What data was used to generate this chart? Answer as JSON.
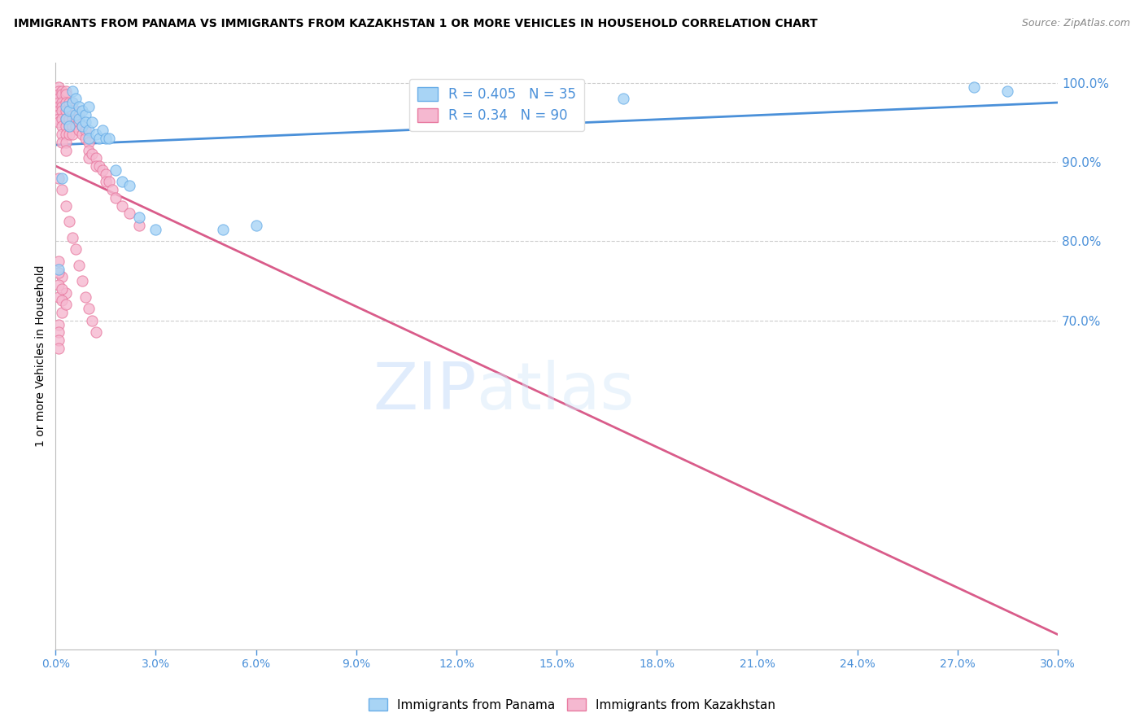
{
  "title": "IMMIGRANTS FROM PANAMA VS IMMIGRANTS FROM KAZAKHSTAN 1 OR MORE VEHICLES IN HOUSEHOLD CORRELATION CHART",
  "source": "Source: ZipAtlas.com",
  "ylabel": "1 or more Vehicles in Household",
  "ylabel_right_ticks": [
    1.0,
    0.9,
    0.8,
    0.7
  ],
  "ylabel_right_labels": [
    "100.0%",
    "90.0%",
    "80.0%",
    "70.0%"
  ],
  "xmin": 0.0,
  "xmax": 0.3,
  "ymin": 0.285,
  "ymax": 1.025,
  "panama_R": 0.405,
  "panama_N": 35,
  "kazakhstan_R": 0.34,
  "kazakhstan_N": 90,
  "panama_color": "#A8D4F5",
  "panama_edge": "#6AAEE8",
  "kazakhstan_color": "#F5B8D0",
  "kazakhstan_edge": "#E87AA0",
  "trendline_panama_color": "#4A90D9",
  "trendline_kazakhstan_color": "#D95C8A",
  "watermark_zip": "ZIP",
  "watermark_atlas": "atlas",
  "panama_x": [
    0.001,
    0.002,
    0.003,
    0.003,
    0.004,
    0.004,
    0.005,
    0.005,
    0.006,
    0.006,
    0.007,
    0.007,
    0.008,
    0.008,
    0.009,
    0.009,
    0.01,
    0.01,
    0.01,
    0.011,
    0.012,
    0.013,
    0.014,
    0.015,
    0.016,
    0.018,
    0.02,
    0.022,
    0.025,
    0.03,
    0.05,
    0.06,
    0.17,
    0.275,
    0.285
  ],
  "panama_y": [
    0.764,
    0.88,
    0.955,
    0.97,
    0.965,
    0.945,
    0.99,
    0.975,
    0.98,
    0.96,
    0.97,
    0.955,
    0.965,
    0.945,
    0.96,
    0.95,
    0.97,
    0.94,
    0.93,
    0.95,
    0.935,
    0.93,
    0.94,
    0.93,
    0.93,
    0.89,
    0.875,
    0.87,
    0.83,
    0.815,
    0.815,
    0.82,
    0.98,
    0.995,
    0.99
  ],
  "kazakhstan_x": [
    0.001,
    0.001,
    0.001,
    0.001,
    0.001,
    0.001,
    0.001,
    0.001,
    0.001,
    0.001,
    0.002,
    0.002,
    0.002,
    0.002,
    0.002,
    0.002,
    0.002,
    0.002,
    0.002,
    0.003,
    0.003,
    0.003,
    0.003,
    0.003,
    0.003,
    0.003,
    0.003,
    0.003,
    0.004,
    0.004,
    0.004,
    0.004,
    0.004,
    0.005,
    0.005,
    0.005,
    0.005,
    0.005,
    0.006,
    0.006,
    0.006,
    0.007,
    0.007,
    0.007,
    0.008,
    0.008,
    0.009,
    0.009,
    0.01,
    0.01,
    0.01,
    0.011,
    0.012,
    0.012,
    0.013,
    0.014,
    0.015,
    0.015,
    0.016,
    0.017,
    0.018,
    0.02,
    0.022,
    0.025,
    0.001,
    0.002,
    0.003,
    0.004,
    0.005,
    0.006,
    0.007,
    0.008,
    0.009,
    0.01,
    0.011,
    0.012,
    0.001,
    0.002,
    0.003,
    0.001,
    0.001,
    0.001,
    0.002,
    0.002,
    0.002,
    0.003,
    0.001,
    0.001,
    0.001,
    0.001
  ],
  "kazakhstan_y": [
    0.995,
    0.99,
    0.985,
    0.98,
    0.975,
    0.97,
    0.965,
    0.96,
    0.955,
    0.95,
    0.99,
    0.985,
    0.975,
    0.97,
    0.965,
    0.955,
    0.945,
    0.935,
    0.925,
    0.99,
    0.985,
    0.975,
    0.965,
    0.955,
    0.945,
    0.935,
    0.925,
    0.915,
    0.975,
    0.965,
    0.955,
    0.945,
    0.935,
    0.975,
    0.965,
    0.955,
    0.945,
    0.935,
    0.965,
    0.955,
    0.945,
    0.96,
    0.95,
    0.94,
    0.945,
    0.935,
    0.94,
    0.93,
    0.925,
    0.915,
    0.905,
    0.91,
    0.905,
    0.895,
    0.895,
    0.89,
    0.885,
    0.875,
    0.875,
    0.865,
    0.855,
    0.845,
    0.835,
    0.82,
    0.88,
    0.865,
    0.845,
    0.825,
    0.805,
    0.79,
    0.77,
    0.75,
    0.73,
    0.715,
    0.7,
    0.685,
    0.775,
    0.755,
    0.735,
    0.76,
    0.745,
    0.73,
    0.74,
    0.725,
    0.71,
    0.72,
    0.695,
    0.685,
    0.675,
    0.665
  ]
}
